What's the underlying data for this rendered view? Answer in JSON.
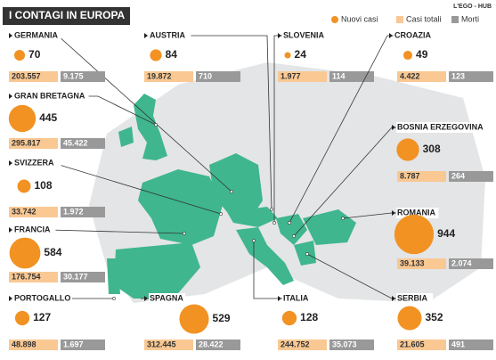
{
  "title": "I CONTAGI IN EUROPA",
  "credit": "L'EGO - HUB",
  "legend": {
    "new": "Nuovi casi",
    "total": "Casi totali",
    "deaths": "Morti"
  },
  "countries": [
    {
      "name": "GERMANIA",
      "new_cases": 70,
      "total": "203.557",
      "deaths": "9.175"
    },
    {
      "name": "AUSTRIA",
      "new_cases": 84,
      "total": "19.872",
      "deaths": "710"
    },
    {
      "name": "SLOVENIA",
      "new_cases": 24,
      "total": "1.977",
      "deaths": "114"
    },
    {
      "name": "CROAZIA",
      "new_cases": 49,
      "total": "4.422",
      "deaths": "123"
    },
    {
      "name": "GRAN BRETAGNA",
      "new_cases": 445,
      "total": "295.817",
      "deaths": "45.422"
    },
    {
      "name": "BOSNIA ERZEGOVINA",
      "new_cases": 308,
      "total": "8.787",
      "deaths": "264"
    },
    {
      "name": "SVIZZERA",
      "new_cases": 108,
      "total": "33.742",
      "deaths": "1.972"
    },
    {
      "name": "ROMANIA",
      "new_cases": 944,
      "total": "39.133",
      "deaths": "2.074"
    },
    {
      "name": "FRANCIA",
      "new_cases": 584,
      "total": "176.754",
      "deaths": "30.177"
    },
    {
      "name": "PORTOGALLO",
      "new_cases": 127,
      "total": "48.898",
      "deaths": "1.697"
    },
    {
      "name": "SPAGNA",
      "new_cases": 529,
      "total": "312.445",
      "deaths": "28.422"
    },
    {
      "name": "ITALIA",
      "new_cases": 128,
      "total": "244.752",
      "deaths": "35.073"
    },
    {
      "name": "SERBIA",
      "new_cases": 352,
      "total": "21.605",
      "deaths": "491"
    }
  ]
}
